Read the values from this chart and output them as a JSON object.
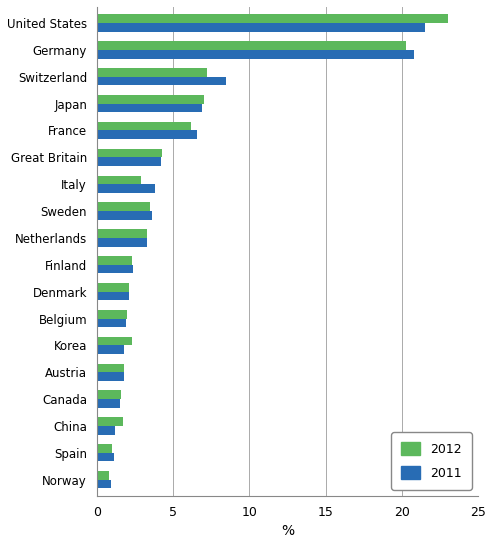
{
  "countries": [
    "United States",
    "Germany",
    "Switzerland",
    "Japan",
    "France",
    "Great Britain",
    "Italy",
    "Sweden",
    "Netherlands",
    "Finland",
    "Denmark",
    "Belgium",
    "Korea",
    "Austria",
    "Canada",
    "China",
    "Spain",
    "Norway"
  ],
  "values_2012": [
    23.0,
    20.3,
    7.2,
    7.0,
    6.2,
    4.3,
    2.9,
    3.5,
    3.3,
    2.3,
    2.1,
    2.0,
    2.3,
    1.8,
    1.6,
    1.7,
    1.0,
    0.8
  ],
  "values_2011": [
    21.5,
    20.8,
    8.5,
    6.9,
    6.6,
    4.2,
    3.8,
    3.6,
    3.3,
    2.4,
    2.1,
    1.9,
    1.8,
    1.8,
    1.5,
    1.2,
    1.1,
    0.9
  ],
  "color_2012": "#5cb85c",
  "color_2011": "#286cb4",
  "xlabel": "%",
  "xlim": [
    0,
    25
  ],
  "xticks": [
    0,
    5,
    10,
    15,
    20,
    25
  ],
  "legend_2012": "2012",
  "legend_2011": "2011",
  "bar_height": 0.32,
  "background_color": "#ffffff",
  "grid_color": "#aaaaaa"
}
